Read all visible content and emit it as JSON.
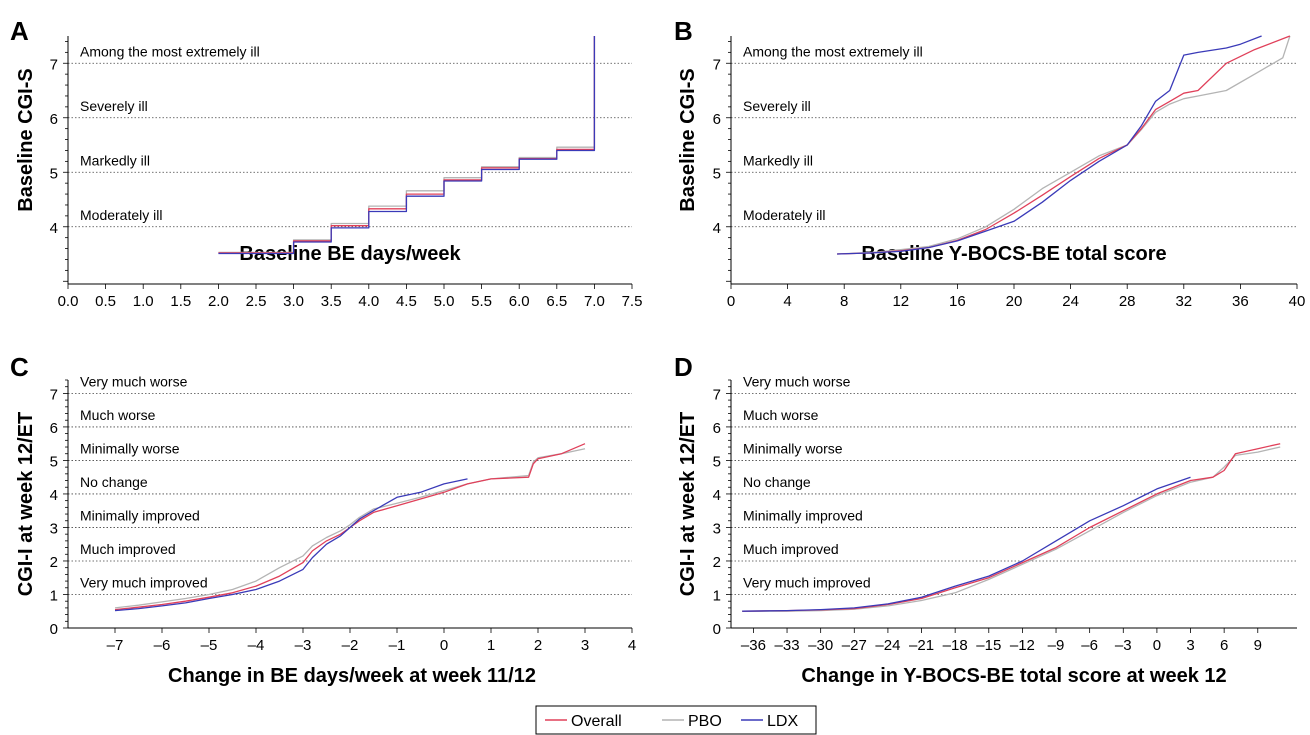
{
  "legend": [
    {
      "name": "Overall",
      "color": "#e0405a"
    },
    {
      "name": "PBO",
      "color": "#b4b4b4"
    },
    {
      "name": "LDX",
      "color": "#3a3ab8"
    }
  ],
  "chart_data": [
    {
      "panel": "A",
      "type": "line",
      "xlabel": "Baseline BE days/week",
      "ylabel": "Baseline CGI-S",
      "xlim": [
        0,
        7.5
      ],
      "ylim": [
        2.95,
        7.5
      ],
      "xticks": [
        0.0,
        0.5,
        1.0,
        1.5,
        2.0,
        2.5,
        3.0,
        3.5,
        4.0,
        4.5,
        5.0,
        5.5,
        6.0,
        6.5,
        7.0,
        7.5
      ],
      "xtick_labels": [
        "0.0",
        "0.5",
        "1.0",
        "1.5",
        "2.0",
        "2.5",
        "3.0",
        "3.5",
        "4.0",
        "4.5",
        "5.0",
        "5.5",
        "6.0",
        "6.5",
        "7.0",
        "7.5"
      ],
      "yticks": [
        4,
        5,
        6,
        7
      ],
      "ytick_labels": [
        "4",
        "5",
        "6",
        "7"
      ],
      "annotations": [
        {
          "text": "Among the most extremely ill",
          "y": 7
        },
        {
          "text": "Severely ill",
          "y": 6
        },
        {
          "text": "Markedly ill",
          "y": 5
        },
        {
          "text": "Moderately ill",
          "y": 4
        }
      ],
      "series": [
        {
          "name": "Overall",
          "x": [
            2.0,
            3.0,
            3.0,
            3.5,
            3.5,
            4.0,
            4.0,
            4.5,
            4.5,
            5.0,
            5.0,
            5.5,
            5.5,
            6.0,
            6.0,
            6.5,
            6.5,
            7.0,
            7.0
          ],
          "y": [
            3.52,
            3.52,
            3.74,
            3.74,
            4.02,
            4.02,
            4.33,
            4.33,
            4.6,
            4.6,
            4.86,
            4.86,
            5.08,
            5.08,
            5.25,
            5.25,
            5.42,
            5.42,
            7.5
          ]
        },
        {
          "name": "PBO",
          "x": [
            2.0,
            3.0,
            3.0,
            3.5,
            3.5,
            4.0,
            4.0,
            4.5,
            4.5,
            5.0,
            5.0,
            5.5,
            5.5,
            6.0,
            6.0,
            6.5,
            6.5,
            7.0,
            7.0
          ],
          "y": [
            3.53,
            3.53,
            3.76,
            3.76,
            4.06,
            4.06,
            4.38,
            4.38,
            4.66,
            4.66,
            4.9,
            4.9,
            5.1,
            5.1,
            5.27,
            5.27,
            5.46,
            5.46,
            7.5
          ]
        },
        {
          "name": "LDX",
          "x": [
            2.0,
            3.0,
            3.0,
            3.5,
            3.5,
            4.0,
            4.0,
            4.5,
            4.5,
            5.0,
            5.0,
            5.5,
            5.5,
            6.0,
            6.0,
            6.5,
            6.5,
            7.0,
            7.0
          ],
          "y": [
            3.51,
            3.51,
            3.72,
            3.72,
            3.98,
            3.98,
            4.28,
            4.28,
            4.56,
            4.56,
            4.84,
            4.84,
            5.05,
            5.05,
            5.24,
            5.24,
            5.4,
            5.4,
            7.5
          ]
        }
      ]
    },
    {
      "panel": "B",
      "type": "line",
      "xlabel": "Baseline Y-BOCS-BE total score",
      "ylabel": "Baseline CGI-S",
      "xlim": [
        0,
        40
      ],
      "ylim": [
        2.95,
        7.5
      ],
      "xticks": [
        0,
        4,
        8,
        12,
        16,
        20,
        24,
        28,
        32,
        36,
        40
      ],
      "xtick_labels": [
        "0",
        "4",
        "8",
        "12",
        "16",
        "20",
        "24",
        "28",
        "32",
        "36",
        "40"
      ],
      "yticks": [
        4,
        5,
        6,
        7
      ],
      "ytick_labels": [
        "4",
        "5",
        "6",
        "7"
      ],
      "annotations": [
        {
          "text": "Among the most extremely ill",
          "y": 7
        },
        {
          "text": "Severely ill",
          "y": 6
        },
        {
          "text": "Markedly ill",
          "y": 5
        },
        {
          "text": "Moderately ill",
          "y": 4
        }
      ],
      "series": [
        {
          "name": "Overall",
          "x": [
            7.5,
            10,
            12,
            14,
            16,
            18,
            20,
            22,
            24,
            26,
            28,
            29,
            30,
            31,
            32,
            33,
            35,
            37,
            39.5
          ],
          "y": [
            3.5,
            3.52,
            3.56,
            3.62,
            3.75,
            3.95,
            4.25,
            4.58,
            4.92,
            5.25,
            5.5,
            5.8,
            6.15,
            6.3,
            6.45,
            6.5,
            7.0,
            7.25,
            7.5
          ]
        },
        {
          "name": "PBO",
          "x": [
            7.5,
            10,
            12,
            14,
            16,
            18,
            20,
            22,
            24,
            26,
            28,
            29,
            30,
            31,
            32,
            33,
            35,
            37,
            39,
            39.5
          ],
          "y": [
            3.5,
            3.53,
            3.58,
            3.64,
            3.78,
            4.0,
            4.32,
            4.7,
            5.0,
            5.3,
            5.5,
            5.78,
            6.1,
            6.25,
            6.35,
            6.4,
            6.5,
            6.8,
            7.1,
            7.5
          ]
        },
        {
          "name": "LDX",
          "x": [
            7.5,
            10,
            12,
            14,
            16,
            18,
            20,
            22,
            24,
            26,
            28,
            29,
            30,
            31,
            32,
            33,
            35,
            36,
            37.5
          ],
          "y": [
            3.5,
            3.52,
            3.55,
            3.62,
            3.74,
            3.92,
            4.1,
            4.45,
            4.85,
            5.2,
            5.5,
            5.85,
            6.3,
            6.5,
            7.15,
            7.2,
            7.28,
            7.35,
            7.5
          ]
        }
      ]
    },
    {
      "panel": "C",
      "type": "line",
      "xlabel": "Change in BE days/week at week 11/12",
      "ylabel": "CGI-I at week 12/ET",
      "xlim": [
        -8,
        4
      ],
      "ylim": [
        0,
        7.4
      ],
      "xticks": [
        -7,
        -6,
        -5,
        -4,
        -3,
        -2,
        -1,
        0,
        1,
        2,
        3,
        4
      ],
      "xtick_labels": [
        "–7",
        "–6",
        "–5",
        "–4",
        "–3",
        "–2",
        "–1",
        "0",
        "1",
        "2",
        "3",
        "4"
      ],
      "yticks": [
        0,
        1,
        2,
        3,
        4,
        5,
        6,
        7
      ],
      "ytick_labels": [
        "0",
        "1",
        "2",
        "3",
        "4",
        "5",
        "6",
        "7"
      ],
      "annotations": [
        {
          "text": "Very much worse",
          "y": 7
        },
        {
          "text": "Much worse",
          "y": 6
        },
        {
          "text": "Minimally worse",
          "y": 5
        },
        {
          "text": "No change",
          "y": 4
        },
        {
          "text": "Minimally improved",
          "y": 3
        },
        {
          "text": "Much improved",
          "y": 2
        },
        {
          "text": "Very much improved",
          "y": 1
        }
      ],
      "series": [
        {
          "name": "Overall",
          "x": [
            -7,
            -6.5,
            -6,
            -5.5,
            -5,
            -4.5,
            -4,
            -3.5,
            -3,
            -2.8,
            -2.5,
            -2.2,
            -2,
            -1.8,
            -1.5,
            -1,
            -0.5,
            0,
            0.5,
            1,
            1.8,
            1.9,
            2,
            2.5,
            3
          ],
          "y": [
            0.55,
            0.62,
            0.7,
            0.8,
            0.92,
            1.05,
            1.25,
            1.55,
            1.95,
            2.3,
            2.6,
            2.8,
            3.0,
            3.2,
            3.45,
            3.65,
            3.85,
            4.05,
            4.3,
            4.45,
            4.5,
            4.9,
            5.05,
            5.2,
            5.5
          ]
        },
        {
          "name": "PBO",
          "x": [
            -7,
            -6.5,
            -6,
            -5.5,
            -5,
            -4.5,
            -4,
            -3.5,
            -3,
            -2.8,
            -2.5,
            -2.2,
            -2,
            -1.8,
            -1.5,
            -1,
            -0.5,
            0,
            0.5,
            1,
            1.8,
            1.9,
            2,
            2.5,
            3
          ],
          "y": [
            0.6,
            0.68,
            0.78,
            0.88,
            1.0,
            1.15,
            1.4,
            1.8,
            2.15,
            2.45,
            2.7,
            2.9,
            3.08,
            3.3,
            3.55,
            3.72,
            3.9,
            4.1,
            4.3,
            4.45,
            4.55,
            4.95,
            5.08,
            5.2,
            5.35
          ]
        },
        {
          "name": "LDX",
          "x": [
            -7,
            -6.5,
            -6,
            -5.5,
            -5,
            -4.5,
            -4,
            -3.5,
            -3,
            -2.8,
            -2.5,
            -2.2,
            -2,
            -1.8,
            -1.5,
            -1,
            -0.5,
            0,
            0.5
          ],
          "y": [
            0.52,
            0.58,
            0.66,
            0.75,
            0.88,
            1.0,
            1.15,
            1.4,
            1.75,
            2.1,
            2.5,
            2.75,
            3.0,
            3.25,
            3.5,
            3.9,
            4.05,
            4.3,
            4.45
          ]
        }
      ]
    },
    {
      "panel": "D",
      "type": "line",
      "xlabel": "Change in Y-BOCS-BE total score at week 12",
      "ylabel": "CGI-I at week 12/ET",
      "xlim": [
        -38,
        12.5
      ],
      "ylim": [
        0,
        7.4
      ],
      "xticks": [
        -36,
        -33,
        -30,
        -27,
        -24,
        -21,
        -18,
        -15,
        -12,
        -9,
        -6,
        -3,
        0,
        3,
        6,
        9
      ],
      "xtick_labels": [
        "–36",
        "–33",
        "–30",
        "–27",
        "–24",
        "–21",
        "–18",
        "–15",
        "–12",
        "–9",
        "–6",
        "–3",
        "0",
        "3",
        "6",
        "9"
      ],
      "yticks": [
        0,
        1,
        2,
        3,
        4,
        5,
        6,
        7
      ],
      "ytick_labels": [
        "0",
        "1",
        "2",
        "3",
        "4",
        "5",
        "6",
        "7"
      ],
      "annotations": [
        {
          "text": "Very much worse",
          "y": 7
        },
        {
          "text": "Much worse",
          "y": 6
        },
        {
          "text": "Minimally worse",
          "y": 5
        },
        {
          "text": "No change",
          "y": 4
        },
        {
          "text": "Minimally improved",
          "y": 3
        },
        {
          "text": "Much improved",
          "y": 2
        },
        {
          "text": "Very much improved",
          "y": 1
        }
      ],
      "series": [
        {
          "name": "Overall",
          "x": [
            -37,
            -33,
            -30,
            -27,
            -24,
            -21,
            -18,
            -15,
            -12,
            -9,
            -6,
            -3,
            0,
            3,
            5,
            6,
            7,
            9,
            11
          ],
          "y": [
            0.5,
            0.52,
            0.54,
            0.58,
            0.7,
            0.88,
            1.2,
            1.5,
            1.95,
            2.4,
            3.0,
            3.5,
            4.0,
            4.4,
            4.5,
            4.7,
            5.2,
            5.35,
            5.5
          ]
        },
        {
          "name": "PBO",
          "x": [
            -37,
            -33,
            -30,
            -27,
            -24,
            -21,
            -18,
            -15,
            -12,
            -9,
            -6,
            -3,
            0,
            3,
            5,
            6,
            7,
            9,
            11
          ],
          "y": [
            0.5,
            0.5,
            0.52,
            0.56,
            0.66,
            0.82,
            1.05,
            1.45,
            1.9,
            2.35,
            2.9,
            3.45,
            3.95,
            4.35,
            4.5,
            4.8,
            5.15,
            5.25,
            5.4
          ]
        },
        {
          "name": "LDX",
          "x": [
            -37,
            -33,
            -30,
            -27,
            -24,
            -21,
            -18,
            -15,
            -12,
            -9,
            -6,
            -3,
            0,
            3
          ],
          "y": [
            0.5,
            0.52,
            0.55,
            0.6,
            0.72,
            0.92,
            1.25,
            1.55,
            2.0,
            2.6,
            3.2,
            3.65,
            4.15,
            4.5
          ]
        }
      ]
    }
  ]
}
